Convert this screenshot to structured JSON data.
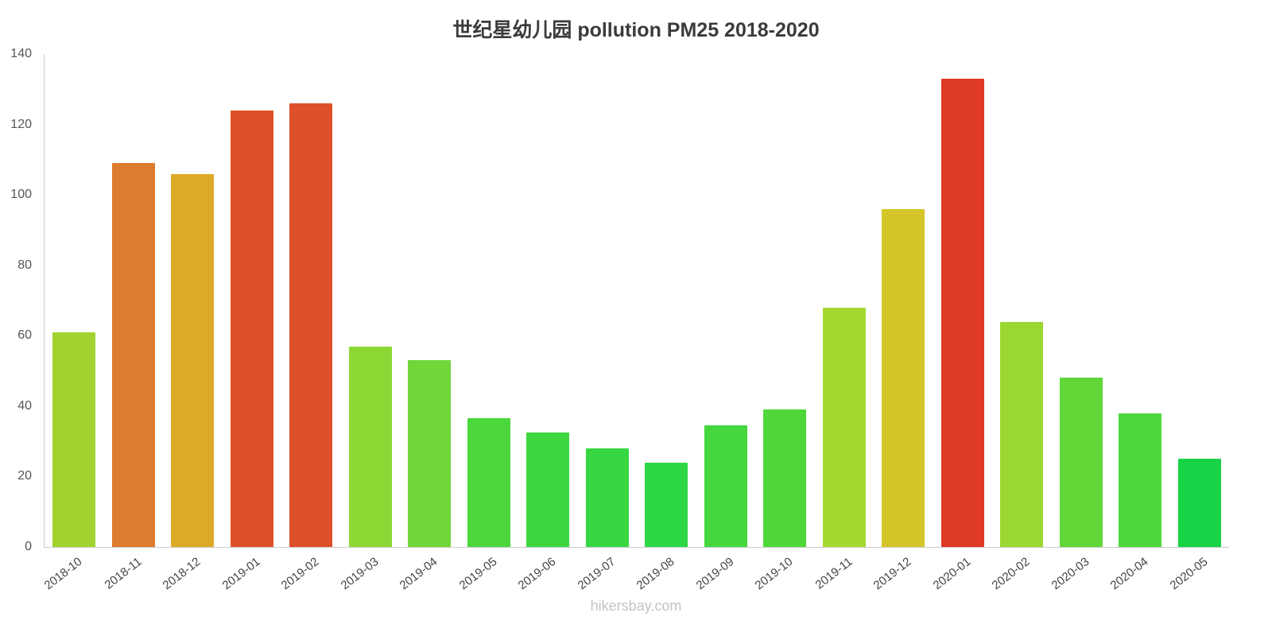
{
  "title": "世纪星幼儿园 pollution PM25 2018-2020",
  "footer": "hikersbay.com",
  "chart_data": {
    "type": "bar",
    "title": "世纪星幼儿园 pollution PM25 2018-2020",
    "categories": [
      "2018-10",
      "2018-11",
      "2018-12",
      "2019-01",
      "2019-02",
      "2019-03",
      "2019-04",
      "2019-05",
      "2019-06",
      "2019-07",
      "2019-08",
      "2019-09",
      "2019-10",
      "2019-11",
      "2019-12",
      "2020-01",
      "2020-02",
      "2020-03",
      "2020-04",
      "2020-05"
    ],
    "values": [
      61,
      109,
      106,
      124,
      126,
      57,
      53,
      36.5,
      32.5,
      28,
      24,
      34.5,
      39,
      68,
      96,
      133,
      64,
      48,
      38,
      25
    ],
    "bar_colors": [
      "#a0d32f",
      "#dd7b2e",
      "#dbaa27",
      "#de5029",
      "#de5029",
      "#8dd735",
      "#70d73b",
      "#4cd73c",
      "#3fd73f",
      "#37d742",
      "#2ed745",
      "#45d73d",
      "#4fd73a",
      "#a4d930",
      "#d5c529",
      "#df3a23",
      "#9bd732",
      "#60d737",
      "#4bd73b",
      "#17d345"
    ],
    "xlabel": "",
    "ylabel": "",
    "ylim": [
      0,
      140
    ],
    "yticks": [
      0,
      20,
      40,
      60,
      80,
      100,
      120,
      140
    ],
    "grid": false,
    "legend": "none",
    "watermark": "hikersbay.com"
  }
}
